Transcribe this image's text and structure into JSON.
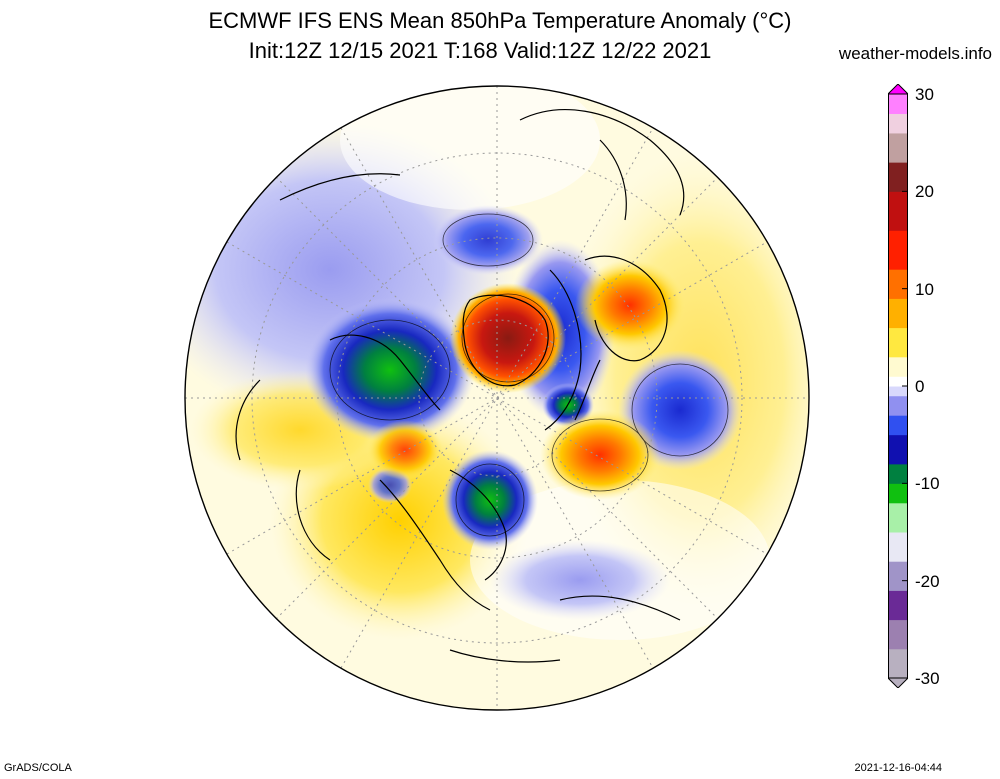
{
  "title_line1": "ECMWF IFS ENS Mean 850hPa Temperature Anomaly (°C)",
  "title_line2": "Init:12Z 12/15 2021  T:168 Valid:12Z 12/22 2021",
  "credit": "weather-models.info",
  "projection": "north-polar-stereographic",
  "colorbar": {
    "min": -30,
    "max": 30,
    "labels": [
      "30",
      "20",
      "10",
      "0",
      "-10",
      "-20",
      "-30"
    ],
    "stops": [
      {
        "value": -30,
        "color": "#b8b0c0"
      },
      {
        "value": -27,
        "color": "#9c80b0"
      },
      {
        "value": -24,
        "color": "#6a2a96"
      },
      {
        "value": -21,
        "color": "#a094c8"
      },
      {
        "value": -18,
        "color": "#e8e8f4"
      },
      {
        "value": -15,
        "color": "#a8f0a8"
      },
      {
        "value": -12,
        "color": "#10c010"
      },
      {
        "value": -10,
        "color": "#008040"
      },
      {
        "value": -8,
        "color": "#1010b0"
      },
      {
        "value": -5,
        "color": "#3050f0"
      },
      {
        "value": -3,
        "color": "#9090f0"
      },
      {
        "value": -1,
        "color": "#d8d8fc"
      },
      {
        "value": 0,
        "color": "#ffffff"
      },
      {
        "value": 1,
        "color": "#fffad0"
      },
      {
        "value": 3,
        "color": "#ffe840"
      },
      {
        "value": 6,
        "color": "#ffb000"
      },
      {
        "value": 9,
        "color": "#ff7000"
      },
      {
        "value": 12,
        "color": "#ff2000"
      },
      {
        "value": 16,
        "color": "#c01010"
      },
      {
        "value": 20,
        "color": "#802020"
      },
      {
        "value": 23,
        "color": "#c0a0a0"
      },
      {
        "value": 26,
        "color": "#f0d0e0"
      },
      {
        "value": 28,
        "color": "#ff80ff"
      },
      {
        "value": 30,
        "color": "#ff00ff"
      }
    ]
  },
  "footer_left": "GrADS/COLA",
  "footer_right": "2021-12-16-04:44"
}
